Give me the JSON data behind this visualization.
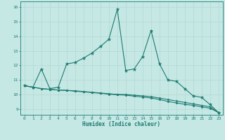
{
  "title": "",
  "xlabel": "Humidex (Indice chaleur)",
  "xlim": [
    -0.5,
    23.5
  ],
  "ylim": [
    8.6,
    16.4
  ],
  "yticks": [
    9,
    10,
    11,
    12,
    13,
    14,
    15,
    16
  ],
  "xticks": [
    0,
    1,
    2,
    3,
    4,
    5,
    6,
    7,
    8,
    9,
    10,
    11,
    12,
    13,
    14,
    15,
    16,
    17,
    18,
    19,
    20,
    21,
    22,
    23
  ],
  "background_color": "#c5e8e5",
  "line_color": "#1e7b70",
  "grid_color": "#aed4cf",
  "line1_x": [
    0,
    1,
    2,
    3,
    4,
    5,
    6,
    7,
    8,
    9,
    10,
    11,
    12,
    13,
    14,
    15,
    16,
    17,
    18,
    19,
    20,
    21,
    22,
    23
  ],
  "line1_y": [
    10.6,
    10.5,
    11.75,
    10.4,
    10.5,
    12.1,
    12.2,
    12.5,
    12.85,
    13.3,
    13.8,
    15.85,
    11.65,
    11.75,
    12.6,
    14.4,
    12.1,
    11.0,
    10.9,
    10.4,
    9.9,
    9.8,
    9.3,
    8.75
  ],
  "line2_x": [
    0,
    1,
    2,
    3,
    4,
    5,
    6,
    7,
    8,
    9,
    10,
    11,
    12,
    13,
    14,
    15,
    16,
    17,
    18,
    19,
    20,
    21,
    22,
    23
  ],
  "line2_y": [
    10.6,
    10.5,
    10.4,
    10.35,
    10.3,
    10.28,
    10.25,
    10.2,
    10.15,
    10.1,
    10.05,
    10.0,
    10.0,
    9.95,
    9.9,
    9.85,
    9.75,
    9.65,
    9.55,
    9.45,
    9.35,
    9.25,
    9.15,
    8.75
  ],
  "line3_x": [
    0,
    1,
    2,
    3,
    4,
    5,
    6,
    7,
    8,
    9,
    10,
    11,
    12,
    13,
    14,
    15,
    16,
    17,
    18,
    19,
    20,
    21,
    22,
    23
  ],
  "line3_y": [
    10.6,
    10.5,
    10.4,
    10.35,
    10.3,
    10.28,
    10.22,
    10.18,
    10.13,
    10.08,
    10.02,
    9.98,
    9.95,
    9.88,
    9.82,
    9.76,
    9.65,
    9.52,
    9.42,
    9.32,
    9.25,
    9.15,
    9.05,
    8.75
  ]
}
